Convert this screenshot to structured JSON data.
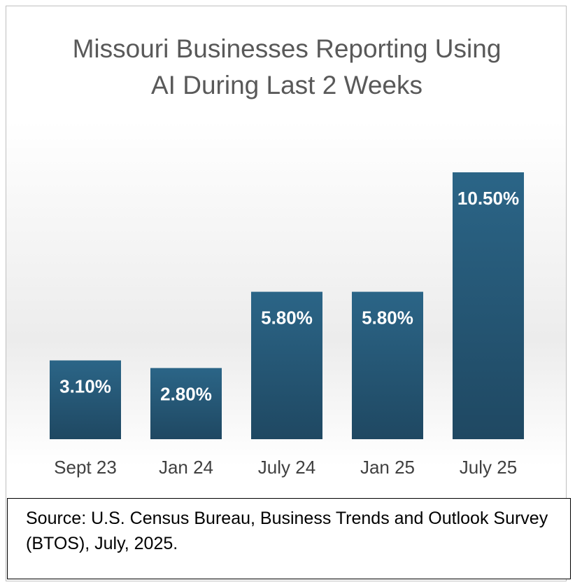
{
  "chart_data": {
    "type": "bar",
    "title": "Missouri Businesses Reporting Using AI During Last 2 Weeks",
    "categories": [
      "Sept 23",
      "Jan 24",
      "July 24",
      "Jan 25",
      "July 25"
    ],
    "values": [
      3.1,
      2.8,
      5.8,
      5.8,
      10.5
    ],
    "value_labels": [
      "3.10%",
      "2.80%",
      "5.80%",
      "5.80%",
      "10.50%"
    ],
    "color": "#275d80",
    "source": "Source: U.S. Census Bureau, Business Trends and Outlook Survey (BTOS), July, 2025."
  }
}
